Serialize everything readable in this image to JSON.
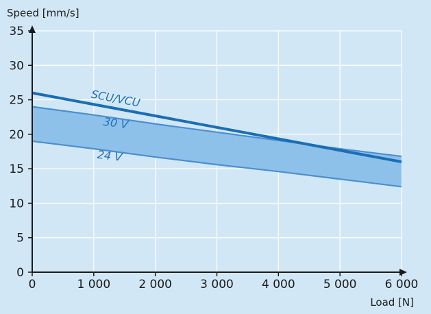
{
  "chart_data": {
    "type": "line",
    "xlabel": "Load [N]",
    "ylabel": "Speed [mm/s]",
    "xlim": [
      0,
      6000
    ],
    "ylim": [
      0,
      35
    ],
    "x_ticks": [
      0,
      1000,
      2000,
      3000,
      4000,
      5000,
      6000
    ],
    "x_tick_labels": [
      "0",
      "1 000",
      "2 000",
      "3 000",
      "4 000",
      "5 000",
      "6 000"
    ],
    "y_ticks": [
      0,
      5,
      10,
      15,
      20,
      25,
      30,
      35
    ],
    "y_tick_labels": [
      "0",
      "5",
      "10",
      "15",
      "20",
      "25",
      "30",
      "35"
    ],
    "grid": true,
    "band_fill": "between 24 V and 30 V",
    "series": [
      {
        "name": "SCU/VCU",
        "x": [
          0,
          6000
        ],
        "values": [
          26,
          16
        ],
        "color": "#1a6eb5"
      },
      {
        "name": "30 V",
        "x": [
          0,
          1000,
          2000,
          3000,
          4000,
          5000,
          6000
        ],
        "values": [
          24,
          22.8,
          21.5,
          20.3,
          19.1,
          17.9,
          16.8
        ],
        "color": "#4a8fd0"
      },
      {
        "name": "24 V",
        "x": [
          0,
          1000,
          2000,
          3000,
          4000,
          5000,
          6000
        ],
        "values": [
          19,
          17.9,
          16.7,
          15.6,
          14.6,
          13.5,
          12.4
        ],
        "color": "#4a8fd0"
      }
    ],
    "colors": {
      "background": "#d2e7f6",
      "band": "#8ec1ea",
      "grid": "#ffffff",
      "axis": "#1a1a1a"
    }
  }
}
